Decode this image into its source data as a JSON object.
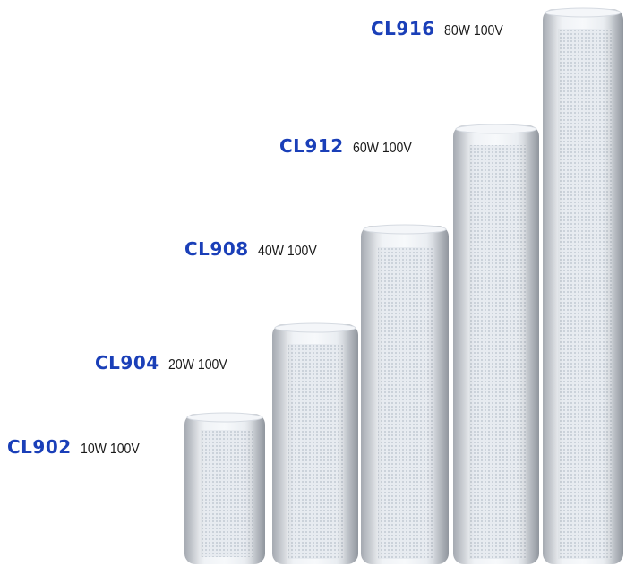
{
  "colors": {
    "model_label": "#1a3fb8",
    "speaker_body": "#eef1f5",
    "speaker_shadow": "#c3c9d2"
  },
  "speakers": [
    {
      "model": "CL916",
      "spec": "80W 100V"
    },
    {
      "model": "CL912",
      "spec": "60W 100V"
    },
    {
      "model": "CL908",
      "spec": "40W 100V"
    },
    {
      "model": "CL904",
      "spec": "20W 100V"
    },
    {
      "model": "CL902",
      "spec": "10W 100V"
    }
  ]
}
